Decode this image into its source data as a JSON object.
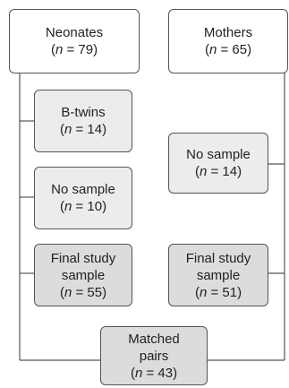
{
  "neonates": {
    "title": "Neonates",
    "n_label": "n",
    "n_value": "= 79)"
  },
  "mothers": {
    "title": "Mothers",
    "n_label": "n",
    "n_value": "= 65)"
  },
  "b_twins": {
    "title": "B-twins",
    "n_label": "n",
    "n_value": "= 14)"
  },
  "neonates_no_sample": {
    "title": "No sample",
    "n_label": "n",
    "n_value": "= 10)"
  },
  "mothers_no_sample": {
    "title": "No sample",
    "n_label": "n",
    "n_value": "= 14)"
  },
  "neonates_final": {
    "title_line1": "Final study",
    "title_line2": "sample",
    "n_label": "n",
    "n_value": "= 55)"
  },
  "mothers_final": {
    "title_line1": "Final study",
    "title_line2": "sample",
    "n_label": "n",
    "n_value": "= 51)"
  },
  "matched": {
    "title_line1": "Matched",
    "title_line2": "pairs",
    "n_label": "n",
    "n_value": "= 43)"
  },
  "colors": {
    "line": "#555555",
    "light_box": "#ececec",
    "mid_box": "#dcdcdc"
  }
}
